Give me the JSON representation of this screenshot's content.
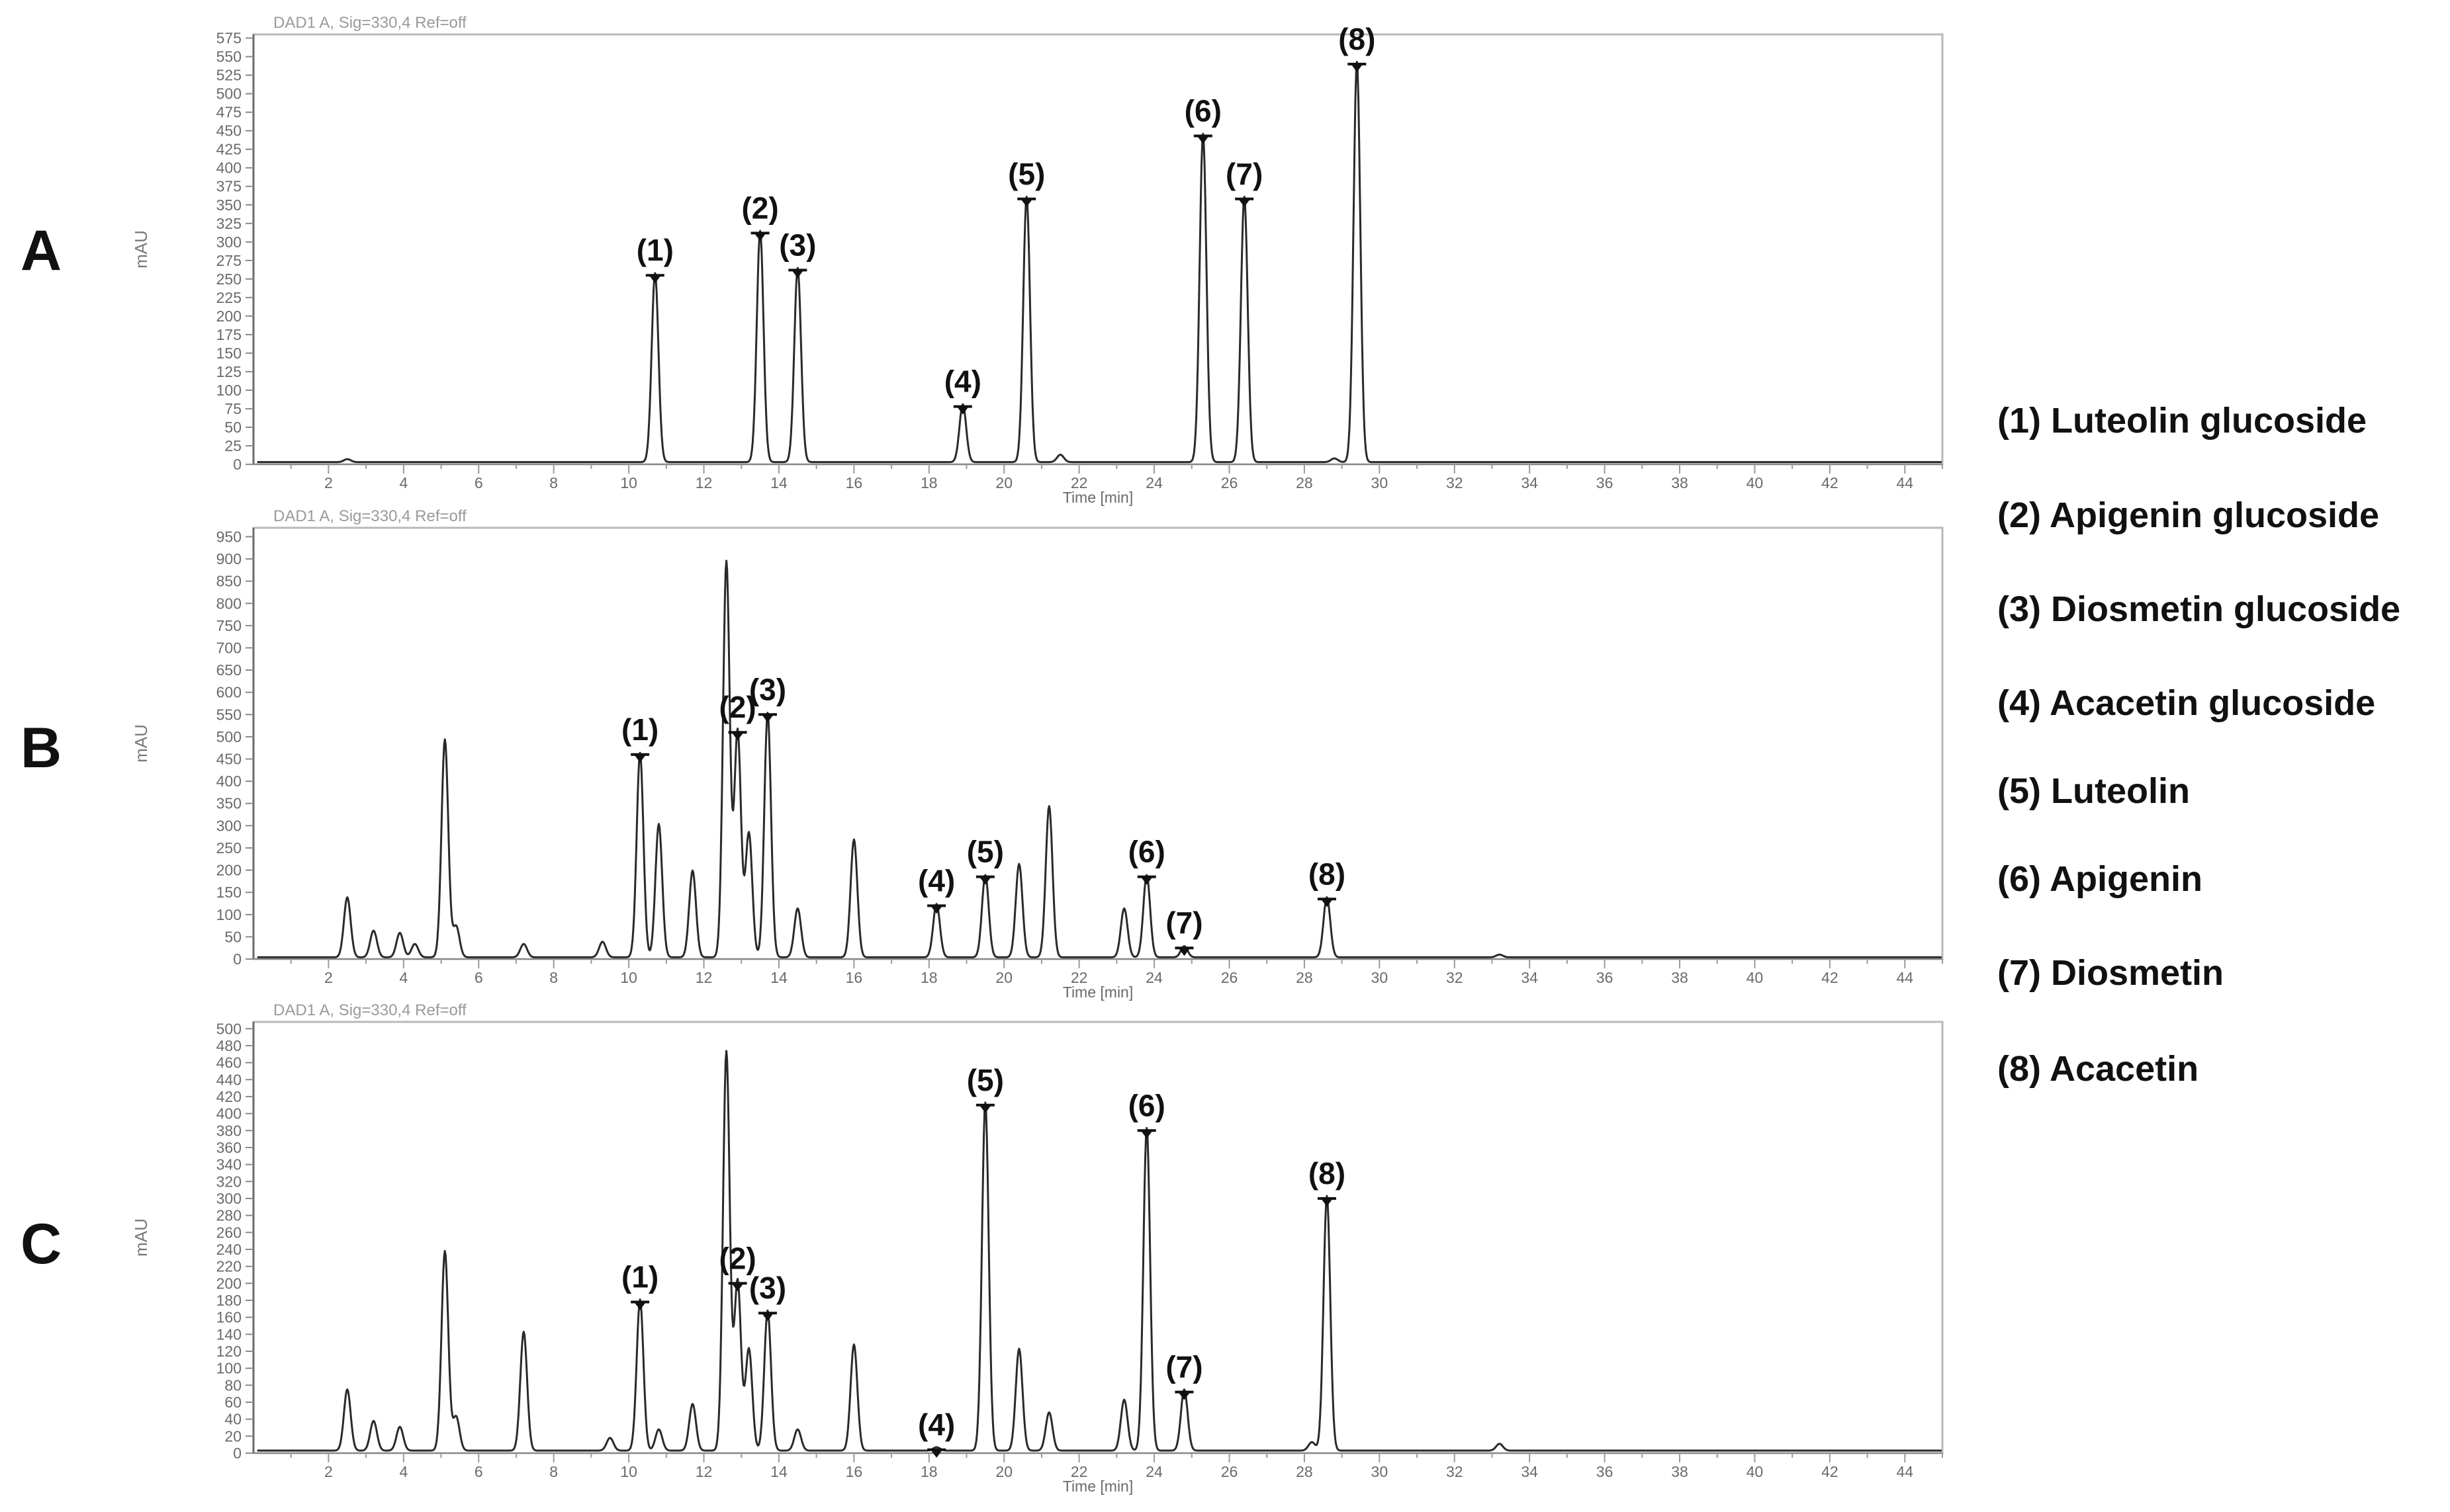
{
  "figure": {
    "x_axis_label": "Time [min]",
    "y_axis_label": "mAU",
    "signal_header": "DAD1 A, Sig=330,4 Ref=off",
    "legend": [
      "(1) Luteolin glucoside",
      "(2) Apigenin glucoside",
      "(3) Diosmetin glucoside",
      "(4) Acacetin glucoside",
      "(5) Luteolin",
      "(6) Apigenin",
      "(7) Diosmetin",
      "(8) Acacetin"
    ]
  },
  "chart_data": [
    {
      "type": "line",
      "panel_label": "A",
      "header": "DAD1 A, Sig=330,4 Ref=off",
      "xlabel": "Time [min]",
      "ylabel": "mAU",
      "xlim": [
        0,
        45
      ],
      "ylim": [
        0,
        580
      ],
      "x_ticks": [
        2,
        4,
        6,
        8,
        10,
        12,
        14,
        16,
        18,
        20,
        22,
        24,
        26,
        28,
        30,
        32,
        34,
        36,
        38,
        40,
        42,
        44
      ],
      "y_ticks": [
        0,
        25,
        50,
        75,
        100,
        125,
        150,
        175,
        200,
        225,
        250,
        275,
        300,
        325,
        350,
        375,
        400,
        425,
        450,
        475,
        500,
        525,
        550,
        575
      ],
      "labeled_peaks": [
        {
          "label": "(1)",
          "x": 10.7,
          "y": 255
        },
        {
          "label": "(2)",
          "x": 13.5,
          "y": 312
        },
        {
          "label": "(3)",
          "x": 14.5,
          "y": 262
        },
        {
          "label": "(4)",
          "x": 18.9,
          "y": 78
        },
        {
          "label": "(5)",
          "x": 20.6,
          "y": 358
        },
        {
          "label": "(6)",
          "x": 25.3,
          "y": 443
        },
        {
          "label": "(7)",
          "x": 26.4,
          "y": 358
        },
        {
          "label": "(8)",
          "x": 29.4,
          "y": 540
        }
      ],
      "other_peaks": [
        {
          "x": 2.5,
          "y": 4
        },
        {
          "x": 21.5,
          "y": 10
        },
        {
          "x": 28.8,
          "y": 5
        }
      ],
      "baseline": 3
    },
    {
      "type": "line",
      "panel_label": "B",
      "header": "DAD1 A, Sig=330,4 Ref=off",
      "xlabel": "Time [min]",
      "ylabel": "mAU",
      "xlim": [
        0,
        45
      ],
      "ylim": [
        0,
        970
      ],
      "x_ticks": [
        2,
        4,
        6,
        8,
        10,
        12,
        14,
        16,
        18,
        20,
        22,
        24,
        26,
        28,
        30,
        32,
        34,
        36,
        38,
        40,
        42,
        44
      ],
      "y_ticks": [
        0,
        50,
        100,
        150,
        200,
        250,
        300,
        350,
        400,
        450,
        500,
        550,
        600,
        650,
        700,
        750,
        800,
        850,
        900,
        950
      ],
      "labeled_peaks": [
        {
          "label": "(1)",
          "x": 10.3,
          "y": 460
        },
        {
          "label": "(2)",
          "x": 12.9,
          "y": 510
        },
        {
          "label": "(3)",
          "x": 13.7,
          "y": 550
        },
        {
          "label": "(4)",
          "x": 18.2,
          "y": 120
        },
        {
          "label": "(5)",
          "x": 19.5,
          "y": 185
        },
        {
          "label": "(6)",
          "x": 23.8,
          "y": 185
        },
        {
          "label": "(7)",
          "x": 24.8,
          "y": 25
        },
        {
          "label": "(8)",
          "x": 28.6,
          "y": 135
        }
      ],
      "other_peaks": [
        {
          "x": 2.5,
          "y": 135
        },
        {
          "x": 3.2,
          "y": 60
        },
        {
          "x": 3.9,
          "y": 55
        },
        {
          "x": 4.3,
          "y": 30
        },
        {
          "x": 5.1,
          "y": 490
        },
        {
          "x": 5.4,
          "y": 70
        },
        {
          "x": 7.2,
          "y": 30
        },
        {
          "x": 9.3,
          "y": 35
        },
        {
          "x": 10.8,
          "y": 300
        },
        {
          "x": 11.7,
          "y": 195
        },
        {
          "x": 12.6,
          "y": 890
        },
        {
          "x": 13.2,
          "y": 280
        },
        {
          "x": 14.5,
          "y": 110
        },
        {
          "x": 16.0,
          "y": 265
        },
        {
          "x": 20.4,
          "y": 210
        },
        {
          "x": 21.2,
          "y": 340
        },
        {
          "x": 23.2,
          "y": 110
        },
        {
          "x": 33.2,
          "y": 6
        }
      ],
      "baseline": 4
    },
    {
      "type": "line",
      "panel_label": "C",
      "header": "DAD1 A, Sig=330,4 Ref=off",
      "xlabel": "Time [min]",
      "ylabel": "mAU",
      "xlim": [
        0,
        45
      ],
      "ylim": [
        0,
        508
      ],
      "x_ticks": [
        2,
        4,
        6,
        8,
        10,
        12,
        14,
        16,
        18,
        20,
        22,
        24,
        26,
        28,
        30,
        32,
        34,
        36,
        38,
        40,
        42,
        44
      ],
      "y_ticks": [
        0,
        20,
        40,
        60,
        80,
        100,
        120,
        140,
        160,
        180,
        200,
        220,
        240,
        260,
        280,
        300,
        320,
        340,
        360,
        380,
        400,
        420,
        440,
        460,
        480,
        500
      ],
      "labeled_peaks": [
        {
          "label": "(1)",
          "x": 10.3,
          "y": 178
        },
        {
          "label": "(2)",
          "x": 12.9,
          "y": 200
        },
        {
          "label": "(3)",
          "x": 13.7,
          "y": 165
        },
        {
          "label": "(4)",
          "x": 18.2,
          "y": 4
        },
        {
          "label": "(5)",
          "x": 19.5,
          "y": 410
        },
        {
          "label": "(6)",
          "x": 23.8,
          "y": 380
        },
        {
          "label": "(7)",
          "x": 24.8,
          "y": 72
        },
        {
          "label": "(8)",
          "x": 28.6,
          "y": 300
        }
      ],
      "other_peaks": [
        {
          "x": 2.5,
          "y": 72
        },
        {
          "x": 3.2,
          "y": 35
        },
        {
          "x": 3.9,
          "y": 28
        },
        {
          "x": 5.1,
          "y": 235
        },
        {
          "x": 5.4,
          "y": 40
        },
        {
          "x": 7.2,
          "y": 140
        },
        {
          "x": 9.5,
          "y": 15
        },
        {
          "x": 10.8,
          "y": 25
        },
        {
          "x": 11.7,
          "y": 55
        },
        {
          "x": 12.6,
          "y": 470
        },
        {
          "x": 13.2,
          "y": 120
        },
        {
          "x": 14.5,
          "y": 25
        },
        {
          "x": 16.0,
          "y": 125
        },
        {
          "x": 20.4,
          "y": 120
        },
        {
          "x": 21.2,
          "y": 45
        },
        {
          "x": 23.2,
          "y": 60
        },
        {
          "x": 28.2,
          "y": 10
        },
        {
          "x": 33.2,
          "y": 8
        }
      ],
      "baseline": 3
    }
  ]
}
